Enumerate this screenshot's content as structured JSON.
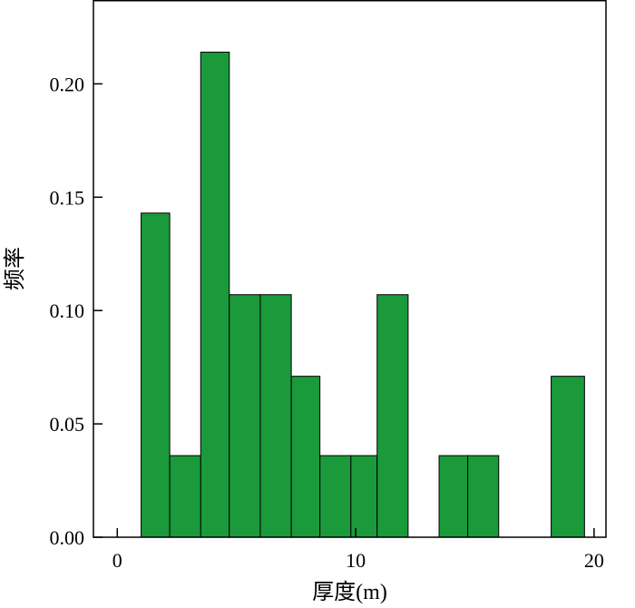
{
  "chart_data": {
    "type": "bar",
    "xlabel": "厚度(m)",
    "ylabel": "频率",
    "xlim": [
      -1,
      20.5
    ],
    "ylim": [
      0,
      0.237
    ],
    "x_ticks": [
      0,
      10,
      20
    ],
    "x_tick_labels": [
      "0",
      "10",
      "20"
    ],
    "y_ticks": [
      0,
      0.05,
      0.1,
      0.15,
      0.2
    ],
    "y_tick_labels": [
      "0.00",
      "0.05",
      "0.10",
      "0.15",
      "0.20"
    ],
    "bar_color": "#1a9a3a",
    "bins": [
      {
        "x0": 1.0,
        "x1": 2.2,
        "value": 0.143
      },
      {
        "x0": 2.2,
        "x1": 3.5,
        "value": 0.036
      },
      {
        "x0": 3.5,
        "x1": 4.7,
        "value": 0.214
      },
      {
        "x0": 4.7,
        "x1": 6.0,
        "value": 0.107
      },
      {
        "x0": 6.0,
        "x1": 7.3,
        "value": 0.107
      },
      {
        "x0": 7.3,
        "x1": 8.5,
        "value": 0.071
      },
      {
        "x0": 8.5,
        "x1": 9.8,
        "value": 0.036
      },
      {
        "x0": 9.8,
        "x1": 10.9,
        "value": 0.036
      },
      {
        "x0": 10.9,
        "x1": 12.2,
        "value": 0.107
      },
      {
        "x0": 13.5,
        "x1": 14.7,
        "value": 0.036
      },
      {
        "x0": 14.7,
        "x1": 16.0,
        "value": 0.036
      },
      {
        "x0": 18.2,
        "x1": 19.6,
        "value": 0.071
      }
    ]
  }
}
